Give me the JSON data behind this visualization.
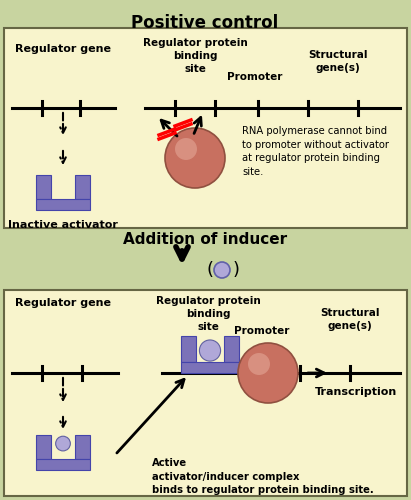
{
  "title": "Positive control",
  "bg_outer": "#c8d4a0",
  "bg_panel": "#f8f4cc",
  "purple": "#7b72b8",
  "light_purple": "#b0a8d8",
  "salmon": "#c87060",
  "salmon_light": "#d89080",
  "middle_text": "Addition of inducer",
  "panel1": {
    "reg_gene_label": "Regulator gene",
    "reg_binding_label": "Regulator protein\nbinding\nsite",
    "promoter_label": "Promoter",
    "structural_label": "Structural\ngene(s)",
    "inactive_label": "Inactive activator",
    "rna_text": "RNA polymerase cannot bind\nto promoter without activator\nat regulator protein binding\nsite."
  },
  "panel2": {
    "reg_gene_label": "Regulator gene",
    "reg_binding_label": "Regulator protein\nbinding\nsite",
    "promoter_label": "Promoter",
    "structural_label": "Structural\ngene(s)",
    "active_label": "Active\nactivator/inducer complex\nbinds to regulator protein binding site.",
    "transcription_label": "Transcription"
  }
}
